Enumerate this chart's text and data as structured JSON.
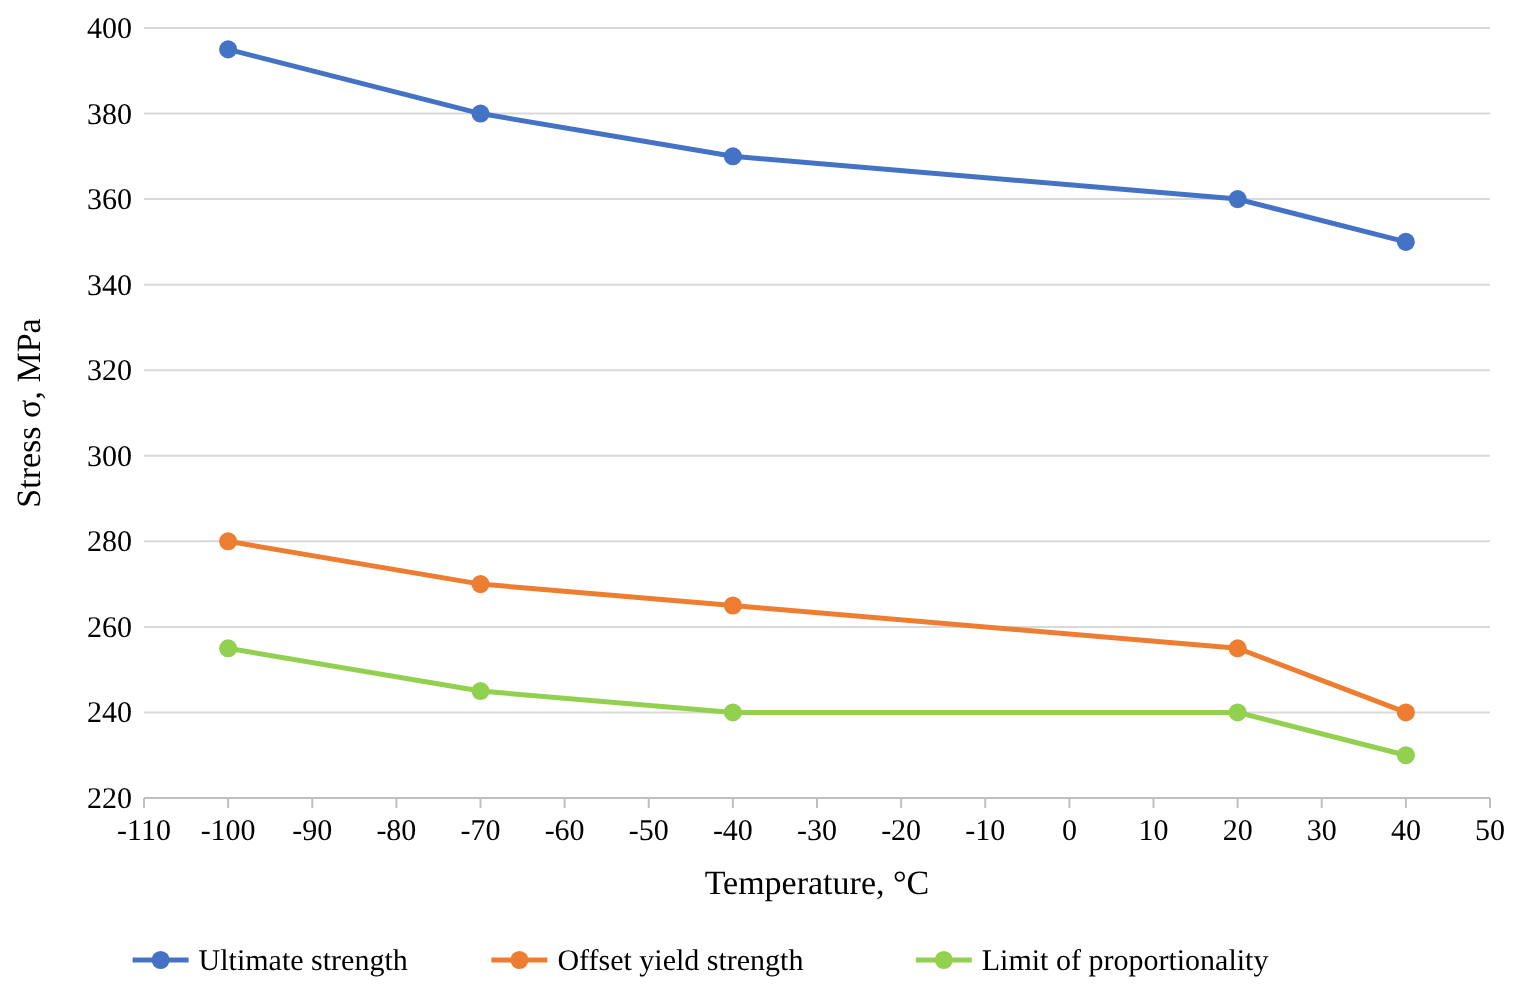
{
  "chart_data": {
    "type": "line",
    "xlabel": "Temperature, °C",
    "ylabel": "Stress σ, MPa",
    "x": [
      -100,
      -70,
      -40,
      20,
      40
    ],
    "series": [
      {
        "name": "Ultimate strength",
        "color": "#4472c4",
        "values": [
          395,
          380,
          370,
          360,
          350
        ]
      },
      {
        "name": "Offset yield strength",
        "color": "#ed7d31",
        "values": [
          280,
          270,
          265,
          255,
          240
        ]
      },
      {
        "name": "Limit of proportionality",
        "color": "#92d050",
        "values": [
          255,
          245,
          240,
          240,
          230
        ]
      }
    ],
    "xlim": [
      -110,
      50
    ],
    "xticks": [
      -110,
      -100,
      -90,
      -80,
      -70,
      -60,
      -50,
      -40,
      -30,
      -20,
      -10,
      0,
      10,
      20,
      30,
      40,
      50
    ],
    "ylim": [
      220,
      400
    ],
    "yticks": [
      220,
      240,
      260,
      280,
      300,
      320,
      340,
      360,
      380,
      400
    ],
    "grid": "y",
    "legend": "bottom",
    "marker": "circle",
    "line_style": "solid"
  }
}
